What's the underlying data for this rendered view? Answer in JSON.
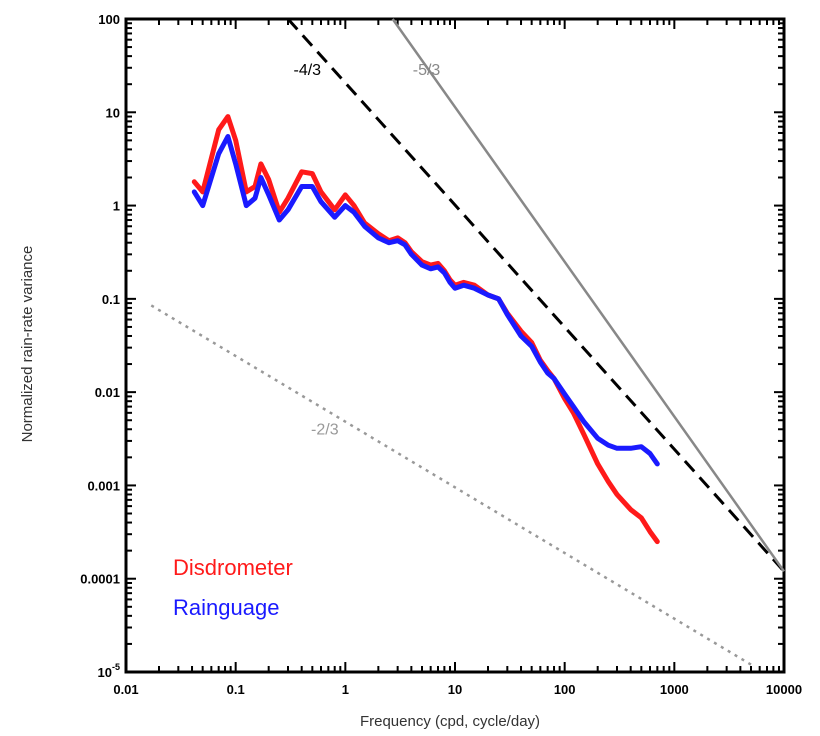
{
  "chart_data": {
    "type": "line",
    "xscale": "log",
    "yscale": "log",
    "xlim": [
      0.01,
      10000
    ],
    "ylim": [
      1e-05,
      100
    ],
    "xlabel": "Frequency (cpd, cycle/day)",
    "ylabel": "Normalized rain-rate variance",
    "x_ticks": [
      {
        "value": 0.01,
        "label": "0.01"
      },
      {
        "value": 0.1,
        "label": "0.1"
      },
      {
        "value": 1,
        "label": "1"
      },
      {
        "value": 10,
        "label": "10"
      },
      {
        "value": 100,
        "label": "100"
      },
      {
        "value": 1000,
        "label": "1000"
      },
      {
        "value": 10000,
        "label": "10000"
      }
    ],
    "y_ticks": [
      {
        "value": 1e-05,
        "label": "10",
        "sup": "-5"
      },
      {
        "value": 0.0001,
        "label": "0.0001"
      },
      {
        "value": 0.001,
        "label": "0.001"
      },
      {
        "value": 0.01,
        "label": "0.01"
      },
      {
        "value": 0.1,
        "label": "0.1"
      },
      {
        "value": 1,
        "label": "1"
      },
      {
        "value": 10,
        "label": "10"
      },
      {
        "value": 100,
        "label": "100"
      }
    ],
    "series": [
      {
        "name": "Disdrometer",
        "color": "#ff1a1a",
        "x": [
          0.042,
          0.05,
          0.07,
          0.085,
          0.1,
          0.125,
          0.15,
          0.17,
          0.2,
          0.25,
          0.3,
          0.4,
          0.5,
          0.6,
          0.8,
          1.0,
          1.2,
          1.5,
          2,
          2.5,
          3,
          3.5,
          4,
          5,
          6,
          7,
          8,
          9,
          10,
          12,
          15,
          20,
          25,
          30,
          40,
          50,
          60,
          70,
          80,
          100,
          120,
          150,
          200,
          250,
          300,
          400,
          500,
          600,
          700
        ],
        "y": [
          1.8,
          1.4,
          6.5,
          9.0,
          5.0,
          1.4,
          1.6,
          2.8,
          1.9,
          0.85,
          1.2,
          2.3,
          2.2,
          1.4,
          0.9,
          1.3,
          1.0,
          0.65,
          0.5,
          0.42,
          0.45,
          0.4,
          0.32,
          0.25,
          0.23,
          0.24,
          0.2,
          0.16,
          0.14,
          0.15,
          0.14,
          0.11,
          0.1,
          0.07,
          0.045,
          0.034,
          0.022,
          0.017,
          0.014,
          0.0085,
          0.006,
          0.0035,
          0.0017,
          0.0011,
          0.0008,
          0.00055,
          0.00045,
          0.00032,
          0.00025
        ]
      },
      {
        "name": "Rainguage",
        "color": "#1a1aff",
        "x": [
          0.042,
          0.05,
          0.07,
          0.085,
          0.1,
          0.125,
          0.15,
          0.17,
          0.2,
          0.25,
          0.3,
          0.4,
          0.5,
          0.6,
          0.8,
          1.0,
          1.2,
          1.5,
          2,
          2.5,
          3,
          3.5,
          4,
          5,
          6,
          7,
          8,
          9,
          10,
          12,
          15,
          20,
          25,
          30,
          40,
          50,
          60,
          70,
          80,
          100,
          120,
          150,
          200,
          250,
          300,
          400,
          500,
          600,
          700
        ],
        "y": [
          1.4,
          1.0,
          3.6,
          5.5,
          2.8,
          1.0,
          1.2,
          2.0,
          1.3,
          0.7,
          0.9,
          1.6,
          1.6,
          1.1,
          0.75,
          1.0,
          0.85,
          0.6,
          0.45,
          0.4,
          0.42,
          0.38,
          0.3,
          0.23,
          0.21,
          0.22,
          0.19,
          0.15,
          0.13,
          0.14,
          0.13,
          0.11,
          0.1,
          0.068,
          0.04,
          0.031,
          0.021,
          0.016,
          0.014,
          0.0095,
          0.007,
          0.0048,
          0.0032,
          0.0027,
          0.0025,
          0.0025,
          0.0026,
          0.0022,
          0.0017
        ]
      }
    ],
    "reference_lines": [
      {
        "label": "-4/3",
        "color": "#000000",
        "dash": "dashed",
        "x": [
          0.3,
          10000
        ],
        "y": [
          100,
          0.00012
        ],
        "label_x": 0.45,
        "label_y": 25
      },
      {
        "label": "-5/3",
        "color": "#888888",
        "dash": "solid",
        "x": [
          2.7,
          10000
        ],
        "y": [
          100,
          0.00012
        ],
        "label_x": 5.5,
        "label_y": 25
      },
      {
        "label": "-2/3",
        "color": "#999999",
        "dash": "dotted",
        "x": [
          0.017,
          5000
        ],
        "y": [
          0.085,
          1.2e-05
        ],
        "label_x": 0.65,
        "label_y": 0.0035
      }
    ],
    "legend": {
      "position": "bottom-left",
      "entries": [
        {
          "label": "Disdrometer",
          "color": "#ff1a1a"
        },
        {
          "label": "Rainguage",
          "color": "#1a1aff"
        }
      ]
    },
    "grid": false
  }
}
